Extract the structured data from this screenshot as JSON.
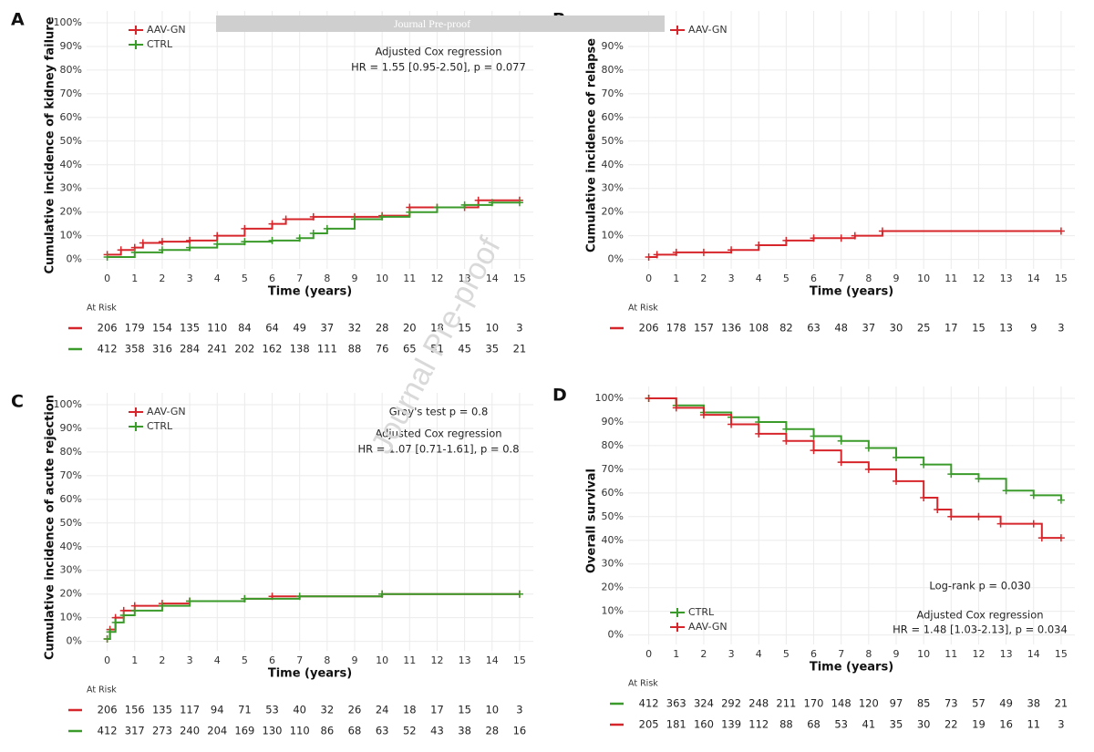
{
  "banner": "Journal Pre-proof",
  "watermark": "Journal Pre-proof",
  "chart_data": [
    {
      "type": "line",
      "step": true,
      "panel_label": "A",
      "y_label": "Cumulative incidence of kidney failure",
      "x_label": "Time (years)",
      "grid": true,
      "legend": "top-left",
      "xlim": [
        -0.75,
        15.5
      ],
      "xticks": [
        0,
        1,
        2,
        3,
        4,
        5,
        6,
        7,
        8,
        9,
        10,
        11,
        12,
        13,
        14,
        15
      ],
      "ylim": [
        -4,
        105
      ],
      "yticks": [
        {
          "value": 0,
          "label": "0%"
        },
        {
          "value": 10,
          "label": "10%"
        },
        {
          "value": 20,
          "label": "20%"
        },
        {
          "value": 30,
          "label": "30%"
        },
        {
          "value": 40,
          "label": "40%"
        },
        {
          "value": 50,
          "label": "50%"
        },
        {
          "value": 60,
          "label": "60%"
        },
        {
          "value": 70,
          "label": "70%"
        },
        {
          "value": 80,
          "label": "80%"
        },
        {
          "value": 90,
          "label": "90%"
        },
        {
          "value": 100,
          "label": "100%"
        }
      ],
      "series": [
        {
          "name": "AAV-GN",
          "color": "#d7262b",
          "x": [
            0,
            0.5,
            1,
            1.3,
            2,
            3,
            4,
            5,
            6,
            6.5,
            7.5,
            9,
            10,
            11,
            12,
            13,
            13.5,
            15
          ],
          "values": [
            2,
            4,
            5,
            7,
            7.5,
            8,
            10,
            13,
            15,
            17,
            18,
            18,
            18.5,
            22,
            22,
            22,
            25,
            25
          ]
        },
        {
          "name": "CTRL",
          "color": "#3a9a2a",
          "x": [
            0,
            1,
            2,
            3,
            4,
            5,
            6,
            7,
            7.5,
            8,
            9,
            10,
            11,
            12,
            13,
            14,
            15
          ],
          "values": [
            1,
            3,
            4,
            5,
            6.5,
            7.5,
            8,
            9,
            11,
            13,
            17,
            18,
            20,
            22,
            23,
            24,
            24
          ]
        }
      ],
      "annotations": [
        "Adjusted Cox regression",
        "HR = 1.55 [0.95-2.50], p = 0.077"
      ],
      "risk_title": "At Risk",
      "risk_table": [
        {
          "color": "#d7262b",
          "values": [
            206,
            179,
            154,
            135,
            110,
            84,
            64,
            49,
            37,
            32,
            28,
            20,
            18,
            15,
            10,
            3
          ]
        },
        {
          "color": "#3a9a2a",
          "values": [
            412,
            358,
            316,
            284,
            241,
            202,
            162,
            138,
            111,
            88,
            76,
            65,
            51,
            45,
            35,
            21
          ]
        }
      ]
    },
    {
      "type": "line",
      "step": true,
      "panel_label": "B",
      "y_label": "Cumulative incidence of relapse",
      "x_label": "Time (years)",
      "grid": true,
      "legend": "top-left",
      "xlim": [
        -0.75,
        15.5
      ],
      "xticks": [
        0,
        1,
        2,
        3,
        4,
        5,
        6,
        7,
        8,
        9,
        10,
        11,
        12,
        13,
        14,
        15
      ],
      "ylim": [
        -4,
        105
      ],
      "yticks": [
        {
          "value": 0,
          "label": "0%"
        },
        {
          "value": 10,
          "label": "10%"
        },
        {
          "value": 20,
          "label": "20%"
        },
        {
          "value": 30,
          "label": "30%"
        },
        {
          "value": 40,
          "label": "40%"
        },
        {
          "value": 50,
          "label": "50%"
        },
        {
          "value": 60,
          "label": "60%"
        },
        {
          "value": 70,
          "label": "70%"
        },
        {
          "value": 80,
          "label": "80%"
        },
        {
          "value": 90,
          "label": "90%"
        }
      ],
      "series": [
        {
          "name": "AAV-GN",
          "color": "#d7262b",
          "x": [
            0,
            0.3,
            1,
            2,
            3,
            4,
            5,
            6,
            7,
            7.5,
            8.5,
            15
          ],
          "values": [
            1,
            2,
            3,
            3,
            4,
            6,
            8,
            9,
            9,
            10,
            12,
            12
          ]
        }
      ],
      "annotations": [],
      "risk_title": "At Risk",
      "risk_table": [
        {
          "color": "#d7262b",
          "values": [
            206,
            178,
            157,
            136,
            108,
            82,
            63,
            48,
            37,
            30,
            25,
            17,
            15,
            13,
            9,
            3
          ]
        }
      ]
    },
    {
      "type": "line",
      "step": true,
      "panel_label": "C",
      "y_label": "Cumulative incidence of acute rejection",
      "x_label": "Time (years)",
      "grid": true,
      "legend": "top-left",
      "xlim": [
        -0.75,
        15.5
      ],
      "xticks": [
        0,
        1,
        2,
        3,
        4,
        5,
        6,
        7,
        8,
        9,
        10,
        11,
        12,
        13,
        14,
        15
      ],
      "ylim": [
        -4,
        105
      ],
      "yticks": [
        {
          "value": 0,
          "label": "0%"
        },
        {
          "value": 10,
          "label": "10%"
        },
        {
          "value": 20,
          "label": "20%"
        },
        {
          "value": 30,
          "label": "30%"
        },
        {
          "value": 40,
          "label": "40%"
        },
        {
          "value": 50,
          "label": "50%"
        },
        {
          "value": 60,
          "label": "60%"
        },
        {
          "value": 70,
          "label": "70%"
        },
        {
          "value": 80,
          "label": "80%"
        },
        {
          "value": 90,
          "label": "90%"
        },
        {
          "value": 100,
          "label": "100%"
        }
      ],
      "series": [
        {
          "name": "AAV-GN",
          "color": "#d7262b",
          "x": [
            0,
            0.1,
            0.3,
            0.6,
            1,
            2,
            3,
            5,
            6,
            10,
            15
          ],
          "values": [
            1,
            5,
            10,
            13,
            15,
            16,
            17,
            18,
            19,
            20,
            20
          ]
        },
        {
          "name": "CTRL",
          "color": "#3a9a2a",
          "x": [
            0,
            0.1,
            0.3,
            0.6,
            1,
            2,
            3,
            5,
            7,
            10,
            15
          ],
          "values": [
            1,
            4,
            8,
            11,
            13,
            15,
            17,
            18,
            19,
            20,
            20
          ]
        }
      ],
      "annotations": [
        "Gray's test p = 0.8",
        "Adjusted Cox regression",
        "HR = 1.07 [0.71-1.61], p = 0.8"
      ],
      "risk_title": "At Risk",
      "risk_table": [
        {
          "color": "#d7262b",
          "values": [
            206,
            156,
            135,
            117,
            94,
            71,
            53,
            40,
            32,
            26,
            24,
            18,
            17,
            15,
            10,
            3
          ]
        },
        {
          "color": "#3a9a2a",
          "values": [
            412,
            317,
            273,
            240,
            204,
            169,
            130,
            110,
            86,
            68,
            63,
            52,
            43,
            38,
            28,
            16
          ]
        }
      ]
    },
    {
      "type": "line",
      "step": true,
      "panel_label": "D",
      "y_label": "Overall survival",
      "x_label": "Time (years)",
      "grid": true,
      "legend": "bottom-left",
      "xlim": [
        -0.75,
        15.5
      ],
      "xticks": [
        0,
        1,
        2,
        3,
        4,
        5,
        6,
        7,
        8,
        9,
        10,
        11,
        12,
        13,
        14,
        15
      ],
      "ylim": [
        -4,
        105
      ],
      "yticks": [
        {
          "value": 0,
          "label": "0%"
        },
        {
          "value": 10,
          "label": "10%"
        },
        {
          "value": 20,
          "label": "20%"
        },
        {
          "value": 30,
          "label": "30%"
        },
        {
          "value": 40,
          "label": "40%"
        },
        {
          "value": 50,
          "label": "50%"
        },
        {
          "value": 60,
          "label": "60%"
        },
        {
          "value": 70,
          "label": "70%"
        },
        {
          "value": 80,
          "label": "80%"
        },
        {
          "value": 90,
          "label": "90%"
        },
        {
          "value": 100,
          "label": "100%"
        }
      ],
      "series": [
        {
          "name": "CTRL",
          "color": "#3a9a2a",
          "x": [
            0,
            1,
            2,
            3,
            4,
            5,
            6,
            7,
            8,
            9,
            10,
            11,
            12,
            13,
            14,
            15
          ],
          "values": [
            100,
            97,
            94,
            92,
            90,
            87,
            84,
            82,
            79,
            75,
            72,
            68,
            66,
            61,
            59,
            57
          ]
        },
        {
          "name": "AAV-GN",
          "color": "#d7262b",
          "x": [
            0,
            1,
            2,
            3,
            4,
            5,
            6,
            7,
            8,
            9,
            10,
            10.5,
            11,
            12,
            12.8,
            14,
            14.3,
            15
          ],
          "values": [
            100,
            96,
            93,
            89,
            85,
            82,
            78,
            73,
            70,
            65,
            58,
            53,
            50,
            50,
            47,
            47,
            41,
            41
          ]
        }
      ],
      "annotations": [
        "Log-rank p = 0.030",
        "Adjusted Cox regression",
        "HR = 1.48 [1.03-2.13], p = 0.034"
      ],
      "risk_title": "At Risk",
      "risk_table": [
        {
          "color": "#3a9a2a",
          "values": [
            412,
            363,
            324,
            292,
            248,
            211,
            170,
            148,
            120,
            97,
            85,
            73,
            57,
            49,
            38,
            21
          ]
        },
        {
          "color": "#d7262b",
          "values": [
            205,
            181,
            160,
            139,
            112,
            88,
            68,
            53,
            41,
            35,
            30,
            22,
            19,
            16,
            11,
            3
          ]
        }
      ]
    }
  ]
}
